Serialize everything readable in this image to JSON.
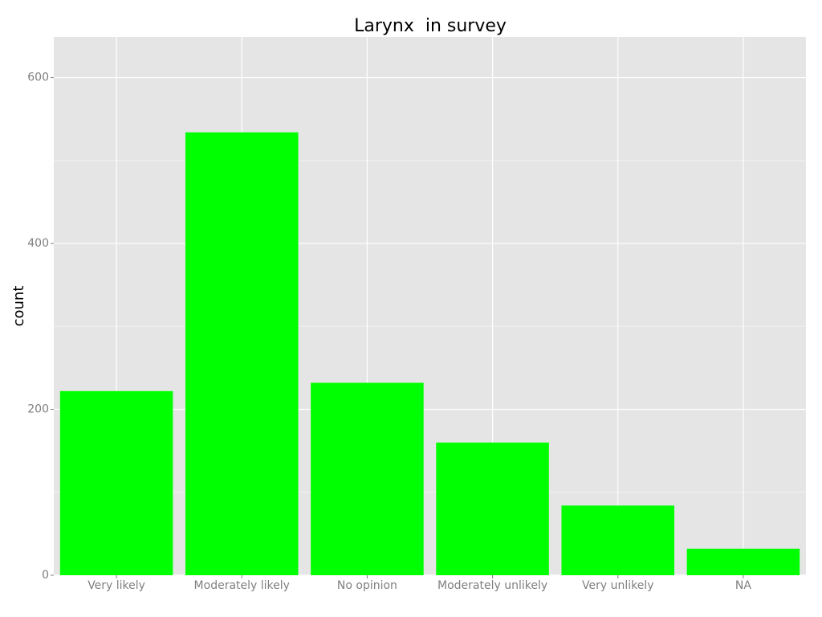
{
  "chart_data": {
    "type": "bar",
    "title": "Larynx  in survey",
    "y_label": "count",
    "categories": [
      "Very likely",
      "Moderately likely",
      "No opinion",
      "Moderately unlikely",
      "Very unlikely",
      "NA"
    ],
    "values": [
      222,
      534,
      232,
      160,
      84,
      32
    ],
    "color": "#00ff00",
    "ylim": [
      0,
      649
    ],
    "yticks": [
      0,
      200,
      400,
      600
    ],
    "y_minor_gridlines": [
      100,
      300,
      500
    ],
    "grid": true
  }
}
